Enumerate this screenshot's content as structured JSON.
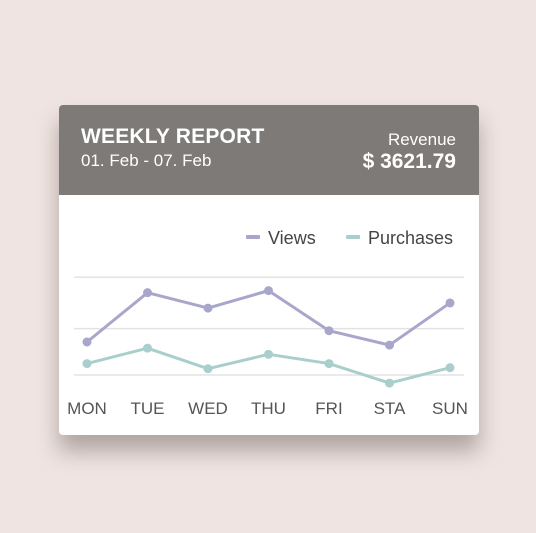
{
  "header": {
    "title": "WEEKLY REPORT",
    "date_range": "01. Feb - 07. Feb",
    "revenue_label": "Revenue",
    "revenue_value": "$ 3621.79"
  },
  "colors": {
    "header_bg": "#7e7a77",
    "views": "#a9a6cc",
    "purchases": "#a8cfcb",
    "grid": "#e3e3e3",
    "page_bg": "#efe4e1"
  },
  "chart_data": {
    "type": "line",
    "categories": [
      "MON",
      "TUE",
      "WED",
      "THU",
      "FRI",
      "STA",
      "SUN"
    ],
    "ylim": [
      0,
      110
    ],
    "grid": true,
    "legend_position": "top-right",
    "series": [
      {
        "name": "Views",
        "values": [
          37,
          85,
          70,
          87,
          48,
          34,
          75
        ]
      },
      {
        "name": "Purchases",
        "values": [
          16,
          31,
          11,
          25,
          16,
          -3,
          12
        ]
      }
    ]
  }
}
